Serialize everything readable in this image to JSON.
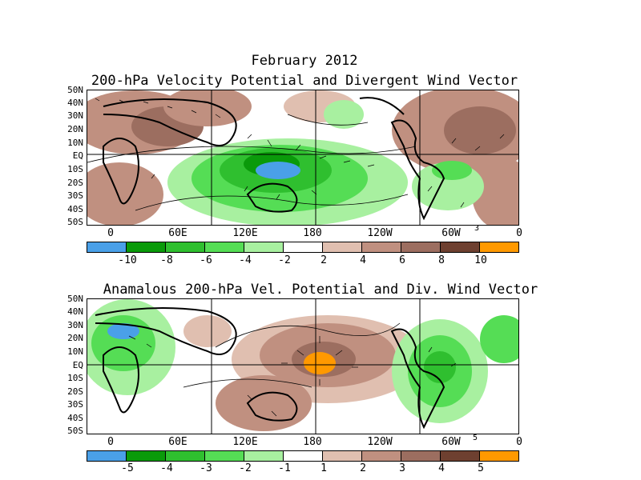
{
  "top": {
    "title_line1": "February 2012",
    "title_line2": "200-hPa Velocity Potential and Divergent Wind Vector",
    "lat_labels": [
      "50N",
      "40N",
      "30N",
      "20N",
      "10N",
      "EQ",
      "10S",
      "20S",
      "30S",
      "40S",
      "50S"
    ],
    "lon_labels": [
      "0",
      "60E",
      "120E",
      "180",
      "120W",
      "60W",
      "0"
    ],
    "vector_ref": "3",
    "colorbar": {
      "colors": [
        "#4aa0e8",
        "#0a9a0a",
        "#2fbf2f",
        "#55dd55",
        "#a8f0a0",
        "#ffffff",
        "#e0bfb0",
        "#c09080",
        "#9c6e60",
        "#6e4030",
        "#ff9900"
      ],
      "labels": [
        "-10",
        "-8",
        "-6",
        "-4",
        "-2",
        "2",
        "4",
        "6",
        "8",
        "10"
      ]
    }
  },
  "bottom": {
    "title": "Anamalous 200-hPa Vel. Potential and Div. Wind Vector",
    "lat_labels": [
      "50N",
      "40N",
      "30N",
      "20N",
      "10N",
      "EQ",
      "10S",
      "20S",
      "30S",
      "40S",
      "50S"
    ],
    "lon_labels": [
      "0",
      "60E",
      "120E",
      "180",
      "120W",
      "60W",
      "0"
    ],
    "vector_ref": "5",
    "colorbar": {
      "colors": [
        "#4aa0e8",
        "#0a9a0a",
        "#2fbf2f",
        "#55dd55",
        "#a8f0a0",
        "#ffffff",
        "#e0bfb0",
        "#c09080",
        "#9c6e60",
        "#6e4030",
        "#ff9900"
      ],
      "labels": [
        "-5",
        "-4",
        "-3",
        "-2",
        "-1",
        "1",
        "2",
        "3",
        "4",
        "5"
      ]
    }
  }
}
